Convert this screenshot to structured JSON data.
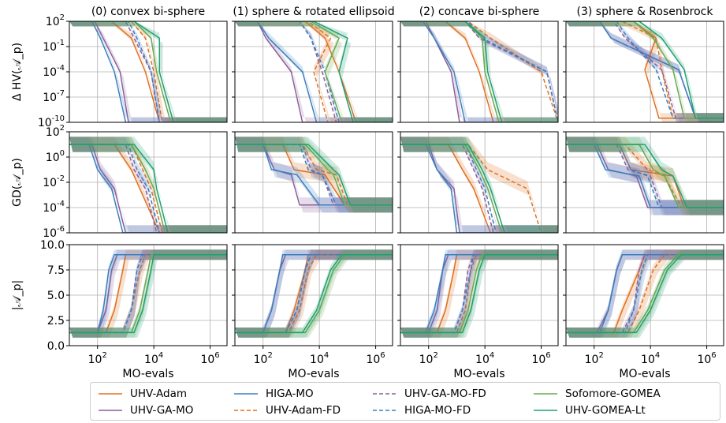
{
  "chart_data": {
    "type": "line",
    "grid": true,
    "legend_position": "bottom",
    "xlabel": "MO-evals",
    "x_ticks": [
      "10^2",
      "10^4",
      "10^6"
    ],
    "xlim_log10": [
      1,
      6.6
    ],
    "row_ylabels": [
      "Δ HV(𝒜_p)",
      "GD(𝒜_p)",
      "|𝒜_p|"
    ],
    "row_yticks": [
      [
        "10^2",
        "10^-1",
        "10^-4",
        "10^-7",
        "10^-10"
      ],
      [
        "10^2",
        "10^0",
        "10^-2",
        "10^-4",
        "10^-6"
      ],
      [
        "10.0",
        "7.5",
        "5.0",
        "2.5",
        "0.0"
      ]
    ],
    "row_ylims": [
      [
        -10,
        2
      ],
      [
        -6,
        2
      ],
      [
        0,
        10
      ]
    ],
    "panel_titles": [
      "(0) convex bi-sphere",
      "(1) sphere & rotated ellipsoid",
      "(2) concave bi-sphere",
      "(3) sphere & Rosenbrock"
    ],
    "series": [
      {
        "name": "UHV-Adam",
        "color": "#e07020",
        "dash": "solid"
      },
      {
        "name": "UHV-GA-MO",
        "color": "#8b5e9b",
        "dash": "solid"
      },
      {
        "name": "HIGA-MO",
        "color": "#3b7fbf",
        "dash": "solid"
      },
      {
        "name": "UHV-Adam-FD",
        "color": "#e07020",
        "dash": "dashed"
      },
      {
        "name": "UHV-GA-MO-FD",
        "color": "#8b5e9b",
        "dash": "dashed"
      },
      {
        "name": "HIGA-MO-FD",
        "color": "#3b7fbf",
        "dash": "dashed"
      },
      {
        "name": "Sofomore-GOMEA",
        "color": "#6aa84f",
        "dash": "solid"
      },
      {
        "name": "UHV-GOMEA-Lt",
        "color": "#20a070",
        "dash": "solid"
      }
    ],
    "curves": [
      [
        [
          [
            2.5,
            3.2,
            3.7,
            4.2
          ],
          [
            3.5,
            4.2,
            4.7,
            5.3
          ],
          [
            2.6,
            3.3,
            3.8,
            4.3
          ],
          [
            3.4,
            4.2,
            3.8,
            4.3
          ]
        ],
        [
          [
            1.9,
            2.2,
            2.8,
            3.1
          ],
          [
            1.8,
            2.1,
            3.0,
            3.4
          ],
          [
            1.9,
            2.2,
            2.8,
            3.1
          ],
          [
            2.2,
            2.6,
            5.0,
            5.6
          ]
        ],
        [
          [
            1.8,
            2.1,
            2.6,
            3.0
          ],
          [
            1.8,
            2.2,
            3.4,
            3.9
          ],
          [
            1.8,
            2.2,
            2.9,
            3.3
          ],
          [
            2.2,
            2.6,
            5.0,
            5.6
          ]
        ],
        [
          [
            3.2,
            3.7,
            4.0,
            4.3
          ],
          [
            3.6,
            4.4,
            3.8,
            4.3
          ],
          [
            3.4,
            4.2,
            6.0,
            6.6
          ],
          [
            3.0,
            4.2,
            4.4,
            4.8
          ]
        ],
        [
          [
            3.0,
            3.3,
            3.9,
            4.2
          ],
          [
            3.3,
            3.7,
            4.1,
            4.6
          ],
          [
            3.3,
            3.8,
            6.2,
            6.6
          ],
          [
            2.7,
            3.1,
            4.4,
            4.9
          ]
        ],
        [
          [
            3.1,
            3.4,
            3.9,
            4.2
          ],
          [
            3.3,
            3.7,
            4.2,
            4.7
          ],
          [
            3.4,
            3.9,
            6.2,
            6.6
          ],
          [
            2.8,
            3.2,
            4.2,
            4.8
          ]
        ],
        [
          [
            3.3,
            3.9,
            4.1,
            4.6
          ],
          [
            3.7,
            4.7,
            4.2,
            4.8
          ],
          [
            3.3,
            3.9,
            4.0,
            4.5
          ],
          [
            3.4,
            4.1,
            4.8,
            5.2
          ]
        ],
        [
          [
            3.3,
            4.2,
            4.2,
            4.7
          ],
          [
            3.8,
            5.0,
            4.7,
            5.2
          ],
          [
            3.3,
            4.0,
            4.1,
            4.6
          ],
          [
            3.6,
            4.4,
            5.2,
            5.6
          ]
        ]
      ],
      [
        [
          [
            2.6,
            3.2,
            3.5,
            4.2
          ],
          [
            2.7,
            3.1,
            4.2,
            4.9
          ],
          [
            2.7,
            3.2,
            3.6,
            4.2
          ],
          [
            2.9,
            3.3,
            4.8,
            5.2
          ]
        ],
        [
          [
            1.8,
            2.1,
            2.6,
            3.0
          ],
          [
            2.0,
            2.4,
            3.0,
            3.3
          ],
          [
            2.0,
            2.3,
            2.9,
            3.1
          ],
          [
            2.1,
            2.5,
            3.5,
            3.9
          ]
        ],
        [
          [
            1.7,
            2.0,
            2.5,
            2.9
          ],
          [
            2.0,
            2.3,
            3.2,
            4.0
          ],
          [
            1.9,
            2.3,
            2.8,
            3.0
          ],
          [
            2.0,
            2.4,
            3.6,
            4.0
          ]
        ],
        [
          [
            3.2,
            3.6,
            3.9,
            4.3
          ],
          [
            3.4,
            3.9,
            4.6,
            5.0
          ],
          [
            3.4,
            4.1,
            5.5,
            6.0
          ],
          [
            3.1,
            3.9,
            4.5,
            5.1
          ]
        ],
        [
          [
            3.0,
            3.3,
            3.7,
            4.1
          ],
          [
            3.4,
            3.7,
            4.1,
            4.5
          ],
          [
            3.2,
            3.6,
            3.9,
            4.3
          ],
          [
            2.8,
            3.2,
            4.0,
            4.4
          ]
        ],
        [
          [
            3.1,
            3.4,
            3.8,
            4.2
          ],
          [
            3.3,
            3.6,
            4.1,
            4.6
          ],
          [
            3.3,
            3.7,
            4.0,
            4.4
          ],
          [
            2.9,
            3.3,
            3.9,
            4.3
          ]
        ],
        [
          [
            3.2,
            3.7,
            4.0,
            4.4
          ],
          [
            3.5,
            4.3,
            4.5,
            4.9
          ],
          [
            3.3,
            3.8,
            4.1,
            4.6
          ],
          [
            3.6,
            4.1,
            4.5,
            5.0
          ]
        ],
        [
          [
            3.3,
            4.0,
            4.1,
            4.5
          ],
          [
            3.6,
            4.5,
            4.7,
            5.1
          ],
          [
            3.4,
            3.9,
            4.2,
            4.7
          ],
          [
            3.8,
            4.4,
            4.8,
            5.3
          ]
        ]
      ],
      [
        [
          [
            2.3,
            2.6,
            2.9,
            3.0
          ],
          [
            2.8,
            3.1,
            3.5,
            3.6
          ],
          [
            2.3,
            2.6,
            2.9,
            3.0
          ],
          [
            2.7,
            3.0,
            3.6,
            3.8
          ]
        ],
        [
          [
            2.0,
            2.3,
            2.5,
            2.7
          ],
          [
            2.0,
            2.3,
            2.6,
            2.8
          ],
          [
            2.0,
            2.3,
            2.5,
            2.7
          ],
          [
            2.1,
            2.5,
            2.8,
            3.0
          ]
        ],
        [
          [
            2.0,
            2.2,
            2.4,
            2.6
          ],
          [
            2.0,
            2.3,
            2.6,
            2.7
          ],
          [
            1.9,
            2.2,
            2.5,
            2.6
          ],
          [
            2.2,
            2.5,
            2.8,
            3.0
          ]
        ],
        [
          [
            2.9,
            3.2,
            3.5,
            3.7
          ],
          [
            2.9,
            3.3,
            3.6,
            3.9
          ],
          [
            3.0,
            3.3,
            3.5,
            3.7
          ],
          [
            3.2,
            3.6,
            4.1,
            4.5
          ]
        ],
        [
          [
            2.9,
            3.2,
            3.4,
            3.6
          ],
          [
            2.8,
            3.2,
            3.5,
            3.7
          ],
          [
            2.9,
            3.2,
            3.4,
            3.6
          ],
          [
            3.0,
            3.4,
            3.6,
            3.8
          ]
        ],
        [
          [
            2.9,
            3.2,
            3.4,
            3.6
          ],
          [
            2.8,
            3.2,
            3.5,
            3.7
          ],
          [
            2.9,
            3.2,
            3.5,
            3.6
          ],
          [
            3.1,
            3.4,
            3.7,
            3.9
          ]
        ],
        [
          [
            3.2,
            3.5,
            3.8,
            3.9
          ],
          [
            3.5,
            4.0,
            4.5,
            4.9
          ],
          [
            3.1,
            3.4,
            3.7,
            3.9
          ],
          [
            3.4,
            3.9,
            4.5,
            5.0
          ]
        ],
        [
          [
            3.3,
            3.6,
            3.9,
            4.0
          ],
          [
            3.4,
            3.9,
            4.4,
            4.8
          ],
          [
            3.2,
            3.5,
            3.8,
            4.0
          ],
          [
            3.5,
            4.0,
            4.6,
            5.1
          ]
        ]
      ]
    ],
    "curve_levels": [
      {
        "start": 2,
        "end": -10,
        "floors": [
          -10,
          -10,
          -10,
          -9.5
        ]
      },
      {
        "start": 1,
        "end": -6,
        "floors": [
          -6,
          -3.8,
          -6,
          -4
        ]
      },
      {
        "start": 1.3,
        "end": 9,
        "floors": [
          9,
          9,
          9,
          9
        ]
      }
    ]
  }
}
